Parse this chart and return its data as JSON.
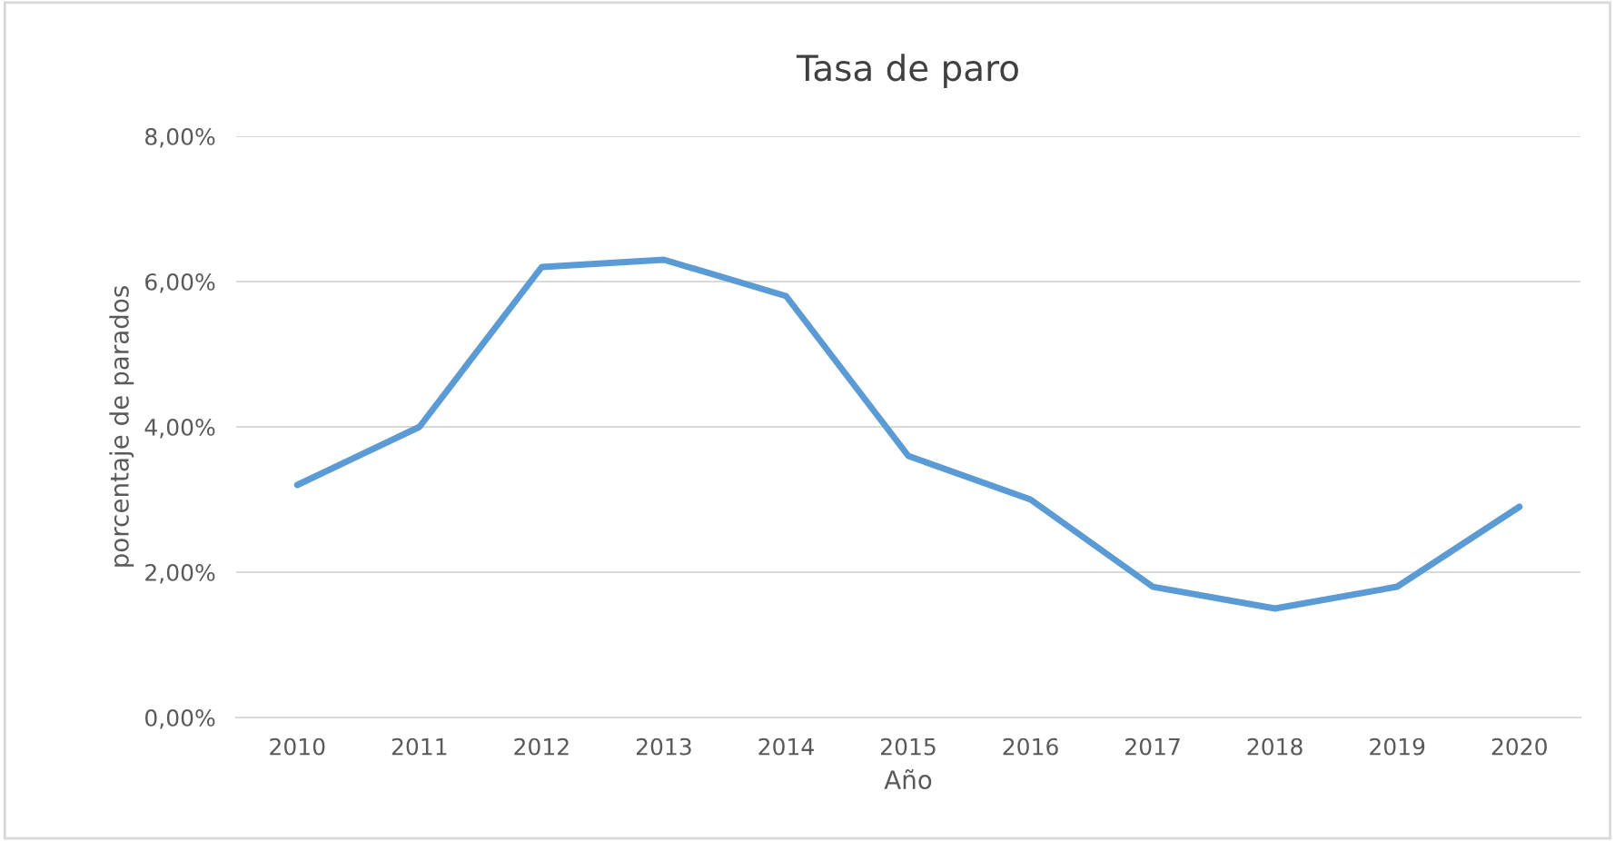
{
  "chart_data": {
    "type": "line",
    "title": "Tasa de paro",
    "xlabel": "Año",
    "ylabel": "porcentaje de parados",
    "categories": [
      "2010",
      "2011",
      "2012",
      "2013",
      "2014",
      "2015",
      "2016",
      "2017",
      "2018",
      "2019",
      "2020"
    ],
    "series": [
      {
        "color": "#5b9bd5",
        "values": [
          3.2,
          4.0,
          6.2,
          6.3,
          5.8,
          3.6,
          3.0,
          1.8,
          1.5,
          1.8,
          2.9
        ]
      }
    ],
    "ylim": [
      0,
      8
    ],
    "yticks": [
      {
        "value": 0,
        "label": "0,00%"
      },
      {
        "value": 2,
        "label": "2,00%"
      },
      {
        "value": 4,
        "label": "4,00%"
      },
      {
        "value": 6,
        "label": "6,00%"
      },
      {
        "value": 8,
        "label": "8,00%"
      }
    ],
    "grid": "y",
    "marker": "none",
    "line_style": "solid"
  }
}
